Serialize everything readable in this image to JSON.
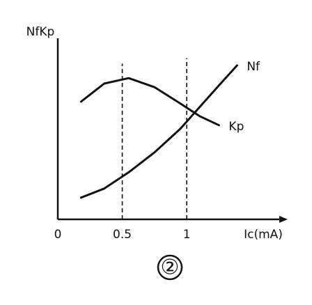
{
  "chart_data": {
    "type": "line",
    "y_label": "NfKp",
    "x_label": "Ic(mA)",
    "annotation": "②",
    "x": [
      0.18,
      0.36,
      0.55,
      0.75,
      0.95,
      1.1,
      1.25,
      1.39
    ],
    "series": [
      {
        "name": "Nf",
        "color": "#111111",
        "values": [
          1.2,
          1.7,
          2.6,
          3.7,
          5.0,
          6.2,
          7.4,
          8.5
        ]
      },
      {
        "name": "Kp",
        "color": "#111111",
        "values": [
          6.5,
          7.5,
          7.8,
          7.3,
          6.4,
          5.7,
          5.2,
          null
        ]
      }
    ],
    "xlim": [
      0,
      1.75
    ],
    "xticks": [
      0,
      0.5,
      1
    ],
    "ylim": [
      0,
      10
    ]
  }
}
